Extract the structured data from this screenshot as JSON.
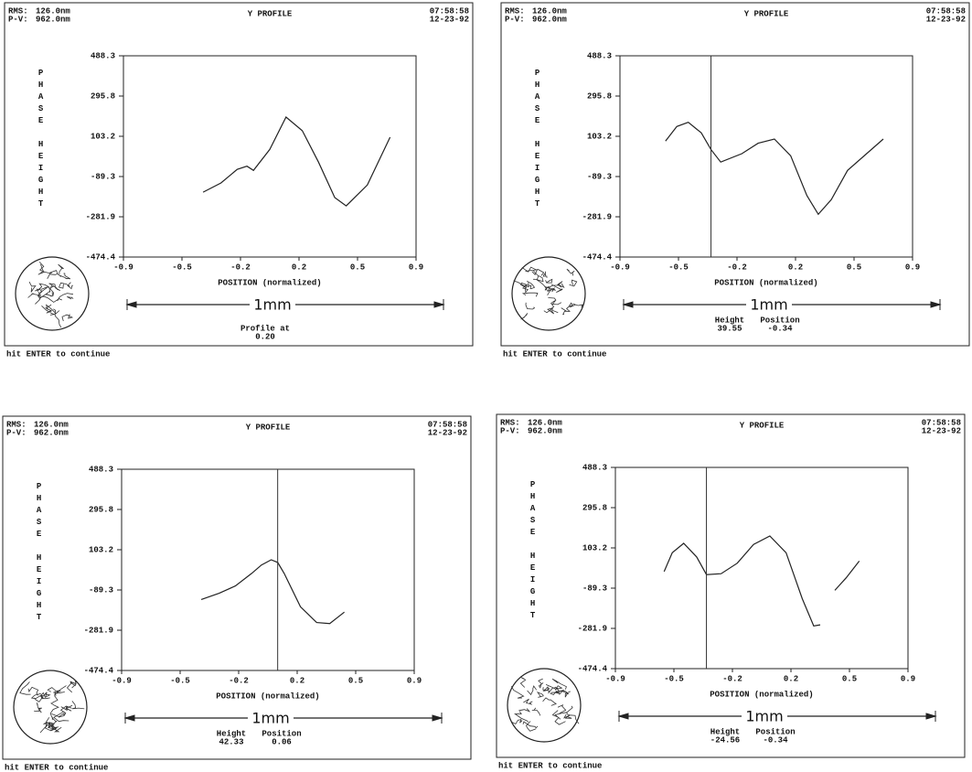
{
  "chart_data": [
    {
      "type": "line",
      "title": "Y PROFILE",
      "rms_label": "RMS:",
      "rms": "126.0nm",
      "pv_label": "P-V:",
      "pv": "962.0nm",
      "time": "07:58:58",
      "date": "12-23-92",
      "y_label": "PHASE HEIGHT",
      "x_label": "POSITION (normalized)",
      "scale_label": "1mm",
      "xlim": [
        -0.9,
        0.9
      ],
      "ylim": [
        -474.4,
        488.3
      ],
      "xticks": [
        -0.9,
        {
          "value": -0.54,
          "label": "-0.5"
        },
        {
          "value": -0.18,
          "label": "-0.2"
        },
        {
          "value": 0.18,
          "label": "0.2"
        },
        {
          "value": 0.54,
          "label": "0.5"
        },
        0.9
      ],
      "yticks": [
        488.3,
        295.8,
        103.2,
        -89.3,
        -281.9,
        -474.4
      ],
      "x": [
        -0.41,
        -0.3,
        -0.2,
        -0.14,
        -0.1,
        0.0,
        0.1,
        0.2,
        0.3,
        0.4,
        0.47,
        0.6,
        0.74
      ],
      "values": [
        -164,
        -120,
        -55,
        -40,
        -60,
        40,
        195,
        130,
        -20,
        -190,
        -230,
        -130,
        99
      ],
      "color": "#222222",
      "readout_label": "Profile at",
      "readout_value": "0.20",
      "footer": "hit ENTER to continue"
    },
    {
      "type": "line",
      "title": "Y PROFILE",
      "rms_label": "RMS:",
      "rms": "126.0nm",
      "pv_label": "P-V:",
      "pv": "962.0nm",
      "time": "07:58:58",
      "date": "12-23-92",
      "y_label": "PHASE HEIGHT",
      "x_label": "POSITION (normalized)",
      "scale_label": "1mm",
      "xlim": [
        -0.9,
        0.9
      ],
      "ylim": [
        -474.4,
        488.3
      ],
      "xticks": [
        -0.9,
        {
          "value": -0.54,
          "label": "-0.5"
        },
        {
          "value": -0.18,
          "label": "-0.2"
        },
        {
          "value": 0.18,
          "label": "0.2"
        },
        {
          "value": 0.54,
          "label": "0.5"
        },
        0.9
      ],
      "yticks": [
        488.3,
        295.8,
        103.2,
        -89.3,
        -281.9,
        -474.4
      ],
      "x": [
        -0.62,
        -0.55,
        -0.48,
        -0.4,
        -0.34,
        -0.28,
        -0.15,
        -0.05,
        0.05,
        0.15,
        0.25,
        0.32,
        0.4,
        0.5,
        0.72
      ],
      "values": [
        80,
        150,
        170,
        120,
        39.55,
        -20,
        20,
        70,
        90,
        10,
        -180,
        -270,
        -200,
        -60,
        90
      ],
      "color": "#222222",
      "cursor_labels": [
        "Height",
        "Position"
      ],
      "cursor_height": 39.55,
      "cursor_position": -0.34,
      "footer": "hit ENTER to continue"
    },
    {
      "type": "line",
      "title": "Y PROFILE",
      "rms_label": "RMS:",
      "rms": "126.0nm",
      "pv_label": "P-V:",
      "pv": "962.0nm",
      "time": "07:58:58",
      "date": "12-23-92",
      "y_label": "PHASE HEIGHT",
      "x_label": "POSITION (normalized)",
      "scale_label": "1mm",
      "xlim": [
        -0.9,
        0.9
      ],
      "ylim": [
        -474.4,
        488.3
      ],
      "xticks": [
        -0.9,
        {
          "value": -0.54,
          "label": "-0.5"
        },
        {
          "value": -0.18,
          "label": "-0.2"
        },
        {
          "value": 0.18,
          "label": "0.2"
        },
        {
          "value": 0.54,
          "label": "0.5"
        },
        0.9
      ],
      "yticks": [
        488.3,
        295.8,
        103.2,
        -89.3,
        -281.9,
        -474.4
      ],
      "x": [
        -0.41,
        -0.3,
        -0.2,
        -0.1,
        -0.04,
        0.02,
        0.06,
        0.1,
        0.2,
        0.3,
        0.38,
        0.47
      ],
      "values": [
        -135,
        -105,
        -70,
        -10,
        30,
        55,
        42.33,
        -10,
        -170,
        -245,
        -250,
        -195
      ],
      "color": "#222222",
      "cursor_labels": [
        "Height",
        "Position"
      ],
      "cursor_height": 42.33,
      "cursor_position": 0.06,
      "footer": "hit ENTER to continue"
    },
    {
      "type": "line",
      "title": "Y PROFILE",
      "rms_label": "RMS:",
      "rms": "126.0nm",
      "pv_label": "P-V:",
      "pv": "962.0nm",
      "time": "07:58:58",
      "date": "12-23-92",
      "y_label": "PHASE HEIGHT",
      "x_label": "POSITION (normalized)",
      "scale_label": "1mm",
      "xlim": [
        -0.9,
        0.9
      ],
      "ylim": [
        -474.4,
        488.3
      ],
      "xticks": [
        -0.9,
        {
          "value": -0.54,
          "label": "-0.5"
        },
        {
          "value": -0.18,
          "label": "-0.2"
        },
        {
          "value": 0.18,
          "label": "0.2"
        },
        {
          "value": 0.54,
          "label": "0.5"
        },
        0.9
      ],
      "yticks": [
        488.3,
        295.8,
        103.2,
        -89.3,
        -281.9,
        -474.4
      ],
      "x": [
        -0.6,
        -0.55,
        -0.48,
        -0.4,
        -0.34,
        -0.25,
        -0.15,
        -0.05,
        0.05,
        0.15,
        0.25,
        0.32,
        0.36,
        null,
        0.45,
        0.52,
        0.6
      ],
      "values": [
        -10,
        80,
        125,
        60,
        -24.56,
        -20,
        30,
        120,
        160,
        80,
        -140,
        -270,
        -265,
        null,
        -100,
        -40,
        40
      ],
      "color": "#222222",
      "cursor_labels": [
        "Height",
        "Position"
      ],
      "cursor_height": -24.56,
      "cursor_position": -0.34,
      "footer": "hit ENTER to continue"
    }
  ]
}
